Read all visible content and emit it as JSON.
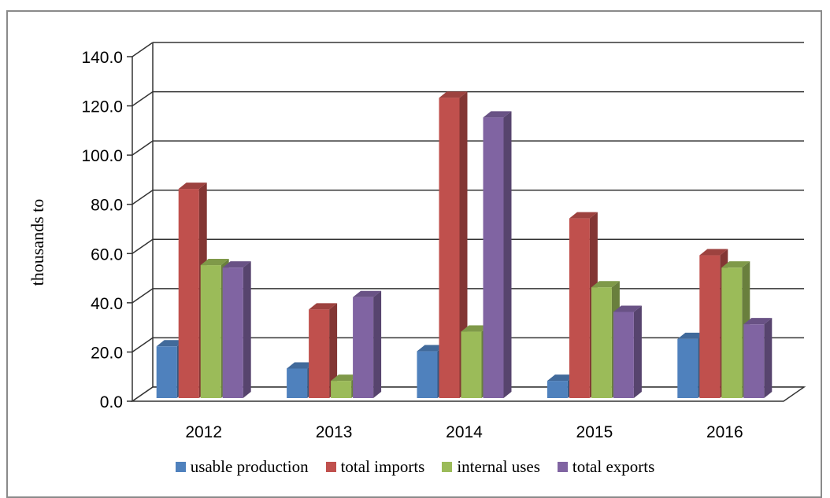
{
  "chart_data": {
    "type": "bar",
    "title": "",
    "xlabel": "",
    "ylabel": "thousands to",
    "ylim": [
      0,
      140
    ],
    "yticks": [
      "0.0",
      "20.0",
      "40.0",
      "60.0",
      "80.0",
      "100.0",
      "120.0",
      "140.0"
    ],
    "categories": [
      "2012",
      "2013",
      "2014",
      "2015",
      "2016"
    ],
    "grid": true,
    "legend_position": "bottom",
    "style": "3d-clustered-bar",
    "series": [
      {
        "name": "usable production",
        "values": [
          21,
          12,
          19,
          7,
          24
        ],
        "color": "#4F81BD"
      },
      {
        "name": "total imports",
        "values": [
          85,
          36,
          122,
          73,
          58
        ],
        "color": "#C0504D"
      },
      {
        "name": "internal uses",
        "values": [
          54,
          7,
          27,
          45,
          53
        ],
        "color": "#9BBB59"
      },
      {
        "name": "total exports",
        "values": [
          53,
          41,
          114,
          35,
          30
        ],
        "color": "#8064A2"
      }
    ]
  }
}
